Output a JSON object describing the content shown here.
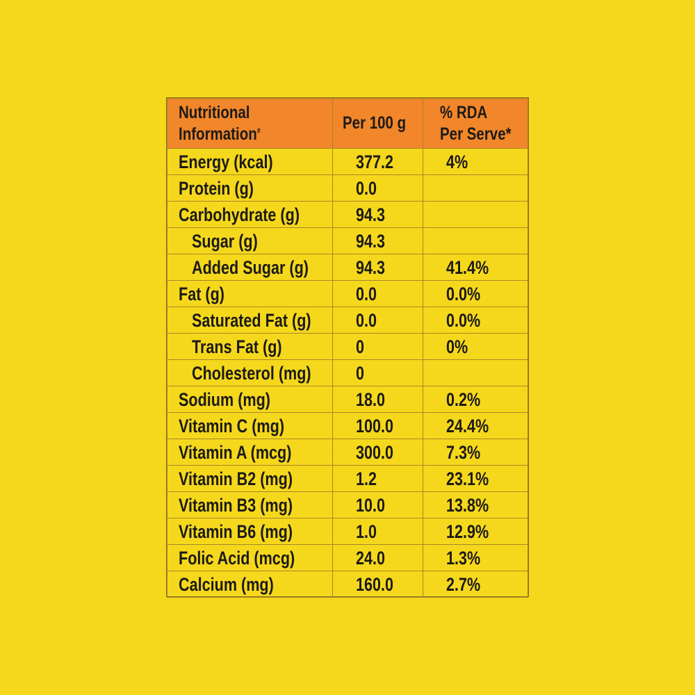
{
  "colors": {
    "background": "#f5d81c",
    "header_fill": "#f2862a",
    "grid_line": "#a8862a",
    "text": "#1c1a17"
  },
  "table": {
    "headers": {
      "name_line1": "Nutritional",
      "name_line2": "Information",
      "name_mark": "#",
      "per100g": "Per 100 g",
      "rda_line1": "% RDA",
      "rda_line2": "Per Serve*"
    },
    "rows": [
      {
        "name": "Energy (kcal)",
        "per100g": "377.2",
        "rda": "4%"
      },
      {
        "name": "Protein (g)",
        "per100g": "0.0",
        "rda": ""
      },
      {
        "name": "Carbohydrate (g)",
        "per100g": "94.3",
        "rda": ""
      },
      {
        "name": "Sugar (g)",
        "per100g": "94.3",
        "rda": ""
      },
      {
        "name": "Added Sugar (g)",
        "per100g": "94.3",
        "rda": "41.4%"
      },
      {
        "name": "Fat (g)",
        "per100g": "0.0",
        "rda": "0.0%"
      },
      {
        "name": "Saturated Fat (g)",
        "per100g": "0.0",
        "rda": "0.0%"
      },
      {
        "name": "Trans Fat (g)",
        "per100g": "0",
        "rda": "0%"
      },
      {
        "name": "Cholesterol (mg)",
        "per100g": "0",
        "rda": ""
      },
      {
        "name": "Sodium (mg)",
        "per100g": "18.0",
        "rda": "0.2%"
      },
      {
        "name": "Vitamin C (mg)",
        "per100g": "100.0",
        "rda": "24.4%"
      },
      {
        "name": "Vitamin A (mcg)",
        "per100g": "300.0",
        "rda": "7.3%"
      },
      {
        "name": "Vitamin B2 (mg)",
        "per100g": "1.2",
        "rda": "23.1%"
      },
      {
        "name": "Vitamin B3 (mg)",
        "per100g": "10.0",
        "rda": "13.8%"
      },
      {
        "name": "Vitamin B6 (mg)",
        "per100g": "1.0",
        "rda": "12.9%"
      },
      {
        "name": "Folic Acid (mcg)",
        "per100g": "24.0",
        "rda": "1.3%"
      },
      {
        "name": "Calcium (mg)",
        "per100g": "160.0",
        "rda": "2.7%"
      }
    ]
  }
}
